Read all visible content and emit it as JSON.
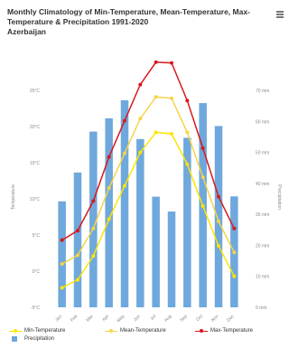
{
  "title": "Monthly Climatology of Min-Temperature, Mean-Temperature, Max-Temperature & Precipitation 1991-2020",
  "subtitle": "Azerbaijan",
  "chart_data": {
    "type": "bar+line",
    "categories": [
      "Jan",
      "Feb",
      "Mar",
      "Apr",
      "May",
      "Jun",
      "Jul",
      "Aug",
      "Sep",
      "Oct",
      "Nov",
      "Dec"
    ],
    "ylabel_left": "Temperature",
    "ylabel_right": "Precipitation",
    "y_left_ticks": [
      "-5°C",
      "0°C",
      "5°C",
      "10°C",
      "15°C",
      "20°C",
      "25°C"
    ],
    "y_left_range": [
      -5,
      25
    ],
    "y_right_ticks": [
      "0 mm",
      "10 mm",
      "20 mm",
      "30 mm",
      "40 mm",
      "50 mm",
      "60 mm",
      "70 mm"
    ],
    "y_right_range": [
      0,
      70
    ],
    "series": [
      {
        "name": "Min-Temperature",
        "type": "line",
        "color": "#ffe400",
        "values": [
          -2.3,
          -1.2,
          2.1,
          7.2,
          11.8,
          16.4,
          19.2,
          19.0,
          14.8,
          9.0,
          3.5,
          -0.7
        ]
      },
      {
        "name": "Mean-Temperature",
        "type": "line",
        "color": "#f7d348",
        "values": [
          1.0,
          2.2,
          5.9,
          11.5,
          16.3,
          21.1,
          24.1,
          23.9,
          19.2,
          13.0,
          6.9,
          2.6
        ]
      },
      {
        "name": "Max-Temperature",
        "type": "line",
        "color": "#d7191c",
        "values": [
          4.3,
          5.6,
          9.7,
          15.8,
          20.8,
          25.8,
          28.9,
          28.8,
          23.6,
          17.0,
          10.3,
          5.9
        ]
      },
      {
        "name": "Precipitation",
        "type": "bar",
        "color": "#6fa8dc",
        "values": [
          34.2,
          43.5,
          56.7,
          61.0,
          66.8,
          54.3,
          35.7,
          30.9,
          54.7,
          65.9,
          58.5,
          35.8
        ]
      }
    ],
    "legend": "bottom-left",
    "grid": false
  }
}
